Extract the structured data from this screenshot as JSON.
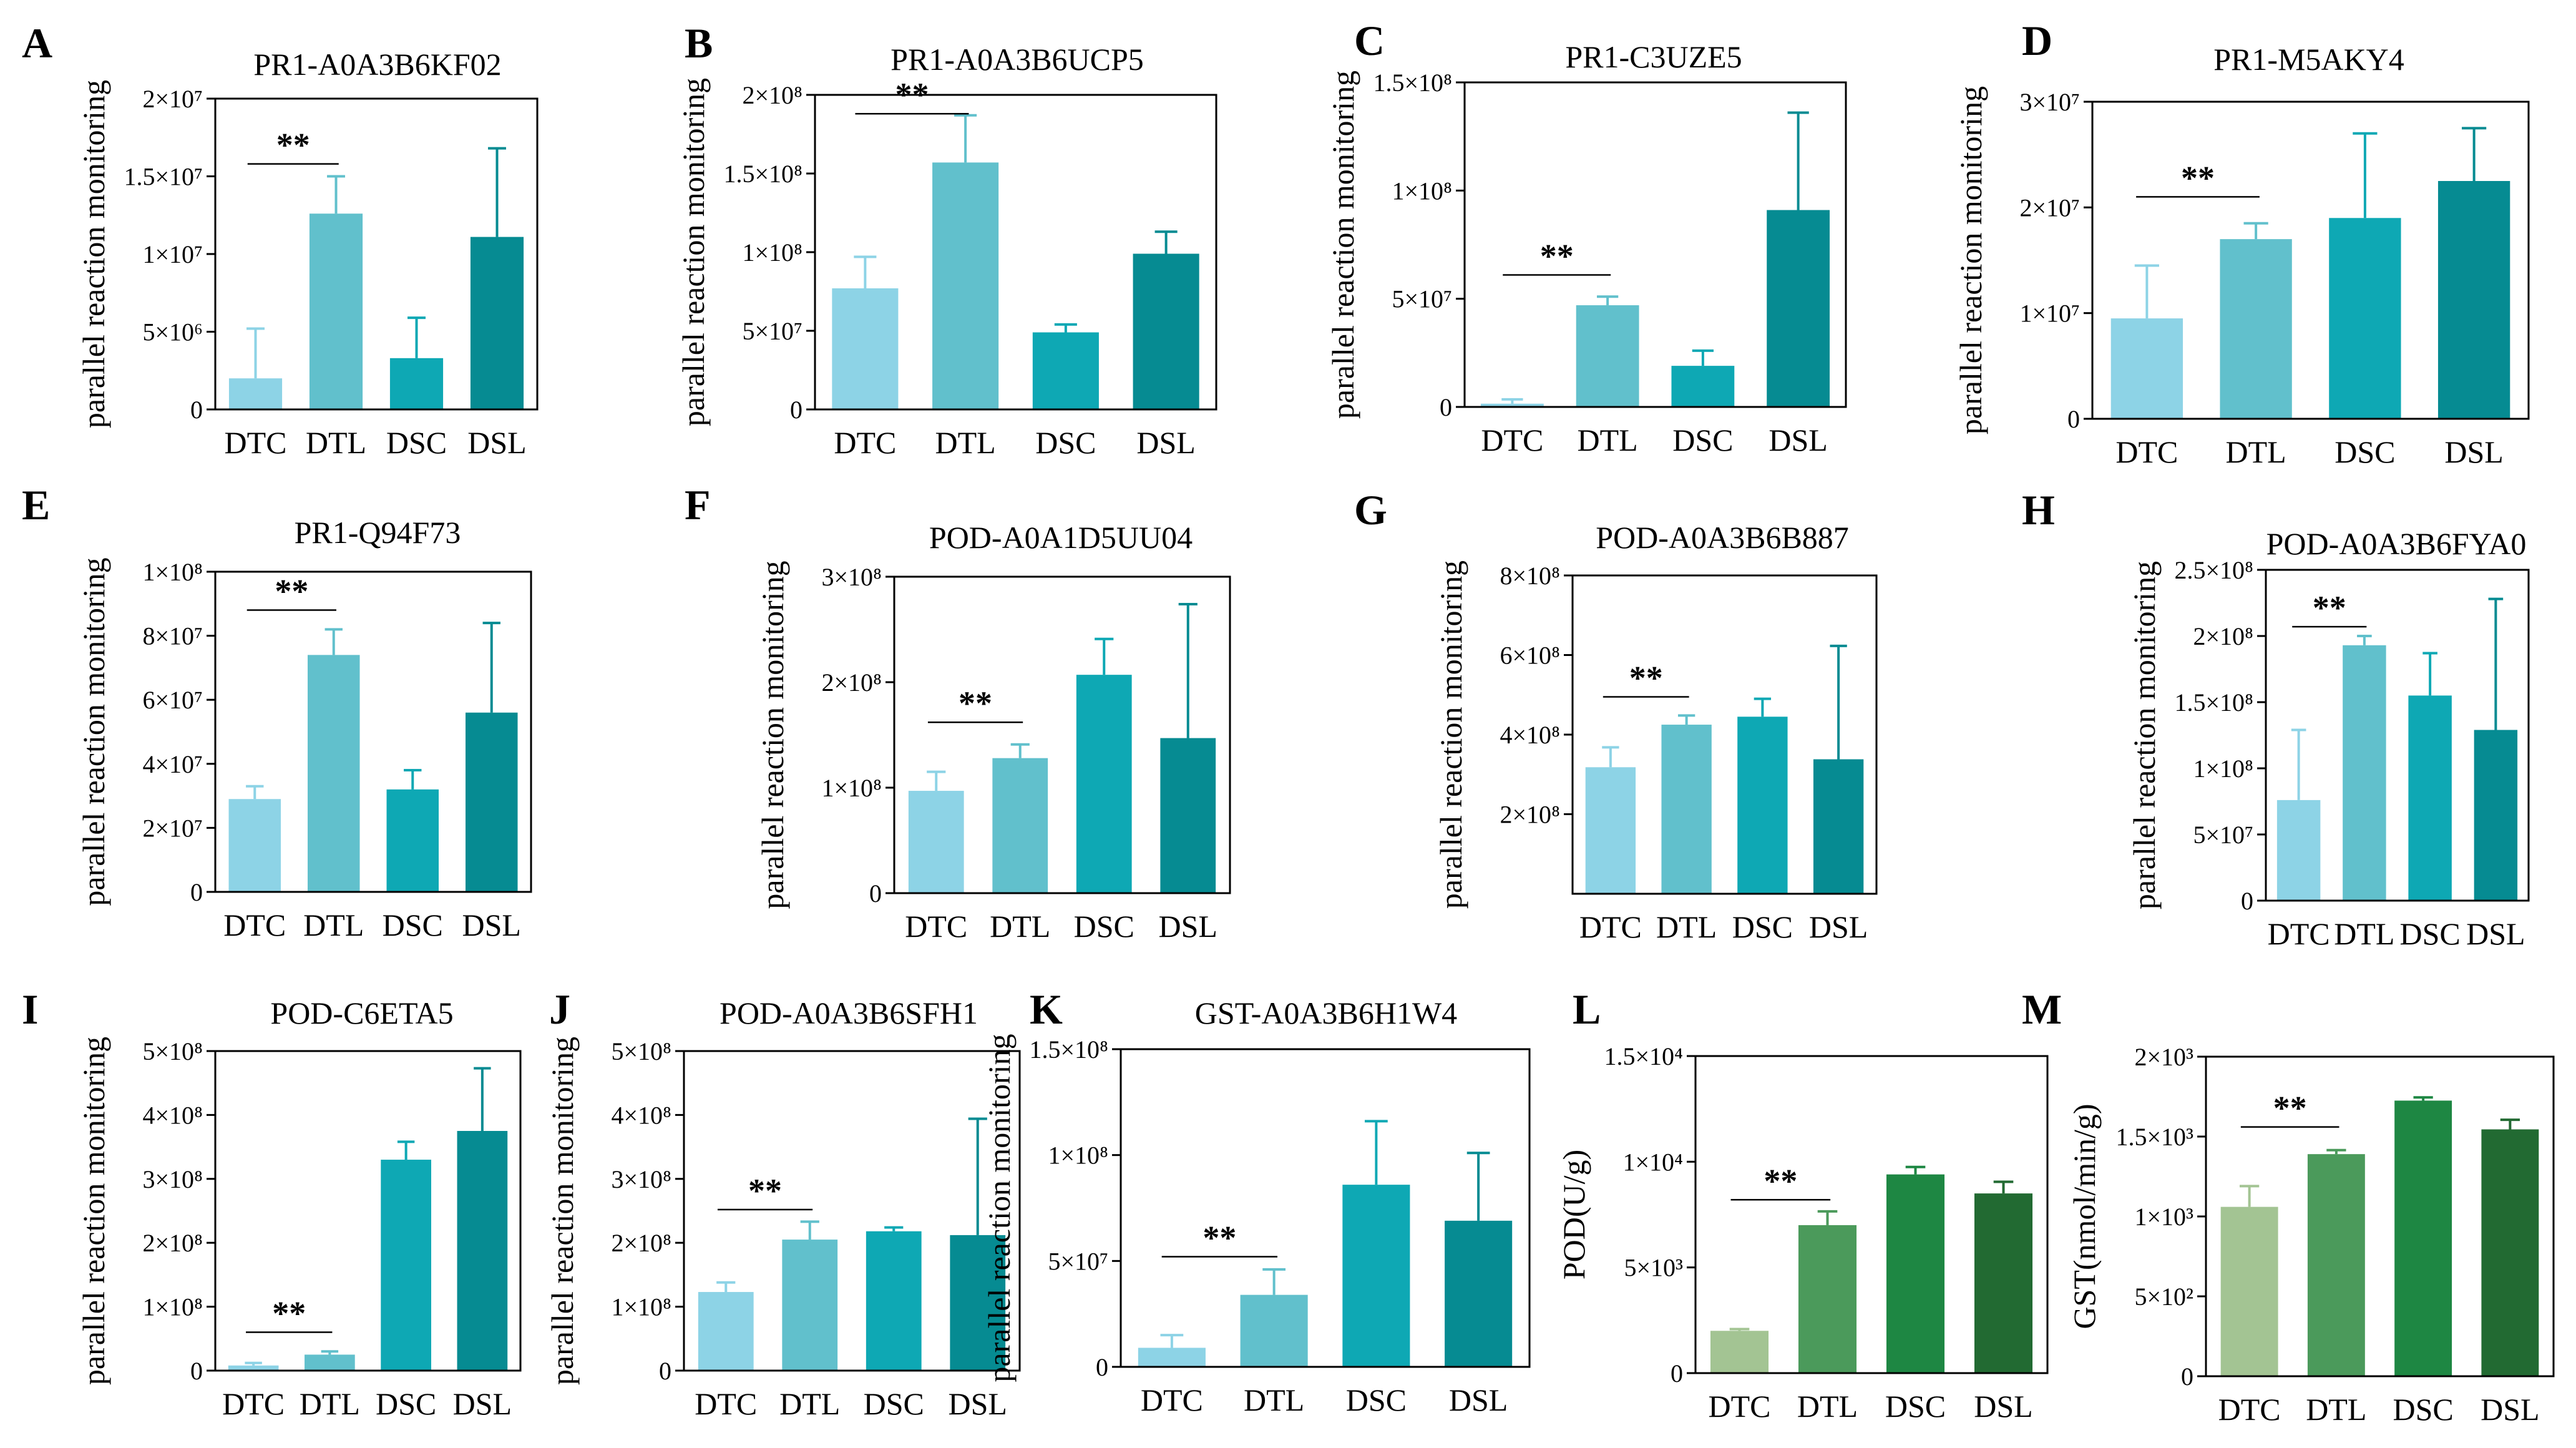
{
  "figure": {
    "background": "#ffffff"
  },
  "chart_data": [
    {
      "panel": "A",
      "type": "bar",
      "title": "PR1-A0A3B6KF02",
      "ylabel": "parallel reaction monitoring",
      "categories": [
        "DTC",
        "DTL",
        "DSC",
        "DSL"
      ],
      "values": [
        2000000,
        12600000,
        3300000,
        11100000
      ],
      "errors": [
        3200000,
        2400000,
        2600000,
        5700000
      ],
      "ylim": [
        0,
        20000000
      ],
      "yticks": [
        0,
        5000000,
        10000000,
        15000000,
        20000000
      ],
      "ytick_labels": [
        "0",
        "5×10⁶",
        "1×10⁷",
        "1.5×10⁷",
        "2×10⁷"
      ],
      "colors": [
        "#8dd3e6",
        "#61c0cc",
        "#0ea8b4",
        "#068b92"
      ],
      "significance": {
        "label": "**",
        "from": 0,
        "to": 1,
        "y": 15800000
      }
    },
    {
      "panel": "B",
      "type": "bar",
      "title": "PR1-A0A3B6UCP5",
      "ylabel": "parallel reaction monitoring",
      "categories": [
        "DTC",
        "DTL",
        "DSC",
        "DSL"
      ],
      "values": [
        77000000,
        157000000,
        49000000,
        99000000
      ],
      "errors": [
        20000000,
        30000000,
        5000000,
        14000000
      ],
      "ylim": [
        0,
        200000000
      ],
      "yticks": [
        0,
        50000000,
        100000000,
        150000000,
        200000000
      ],
      "ytick_labels": [
        "0",
        "5×10⁷",
        "1×10⁸",
        "1.5×10⁸",
        "2×10⁸"
      ],
      "colors": [
        "#8dd3e6",
        "#61c0cc",
        "#0ea8b4",
        "#068b92"
      ],
      "significance": {
        "label": "**",
        "from": 0,
        "to": 1,
        "y": 188000000
      }
    },
    {
      "panel": "C",
      "type": "bar",
      "title": "PR1-C3UZE5",
      "ylabel": "parallel reaction monitoring",
      "categories": [
        "DTC",
        "DTL",
        "DSC",
        "DSL"
      ],
      "values": [
        1500000,
        47000000,
        19000000,
        91000000
      ],
      "errors": [
        2000000,
        4000000,
        7000000,
        45000000
      ],
      "ylim": [
        0,
        150000000
      ],
      "yticks": [
        0,
        50000000,
        100000000,
        150000000
      ],
      "ytick_labels": [
        "0",
        "5×10⁷",
        "1×10⁸",
        "1.5×10⁸"
      ],
      "colors": [
        "#8dd3e6",
        "#61c0cc",
        "#0ea8b4",
        "#068b92"
      ],
      "significance": {
        "label": "**",
        "from": 0,
        "to": 1,
        "y": 61000000
      }
    },
    {
      "panel": "D",
      "type": "bar",
      "title": "PR1-M5AKY4",
      "ylabel": "parallel reaction monitoring",
      "categories": [
        "DTC",
        "DTL",
        "DSC",
        "DSL"
      ],
      "values": [
        9500000,
        17000000,
        19000000,
        22500000
      ],
      "errors": [
        5000000,
        1500000,
        8000000,
        5000000
      ],
      "ylim": [
        0,
        30000000
      ],
      "yticks": [
        0,
        10000000,
        20000000,
        30000000
      ],
      "ytick_labels": [
        "0",
        "1×10⁷",
        "2×10⁷",
        "3×10⁷"
      ],
      "colors": [
        "#8dd3e6",
        "#61c0cc",
        "#0ea8b4",
        "#068b92"
      ],
      "significance": {
        "label": "**",
        "from": 0,
        "to": 1,
        "y": 21000000
      }
    },
    {
      "panel": "E",
      "type": "bar",
      "title": "PR1-Q94F73",
      "ylabel": "parallel reaction monitoring",
      "categories": [
        "DTC",
        "DTL",
        "DSC",
        "DSL"
      ],
      "values": [
        29000000,
        74000000,
        32000000,
        56000000
      ],
      "errors": [
        4000000,
        8000000,
        6000000,
        28000000
      ],
      "ylim": [
        0,
        100000000
      ],
      "yticks": [
        0,
        20000000,
        40000000,
        60000000,
        80000000,
        100000000
      ],
      "ytick_labels": [
        "0",
        "2×10⁷",
        "4×10⁷",
        "6×10⁷",
        "8×10⁷",
        "1×10⁸"
      ],
      "colors": [
        "#8dd3e6",
        "#61c0cc",
        "#0ea8b4",
        "#068b92"
      ],
      "significance": {
        "label": "**",
        "from": 0,
        "to": 1,
        "y": 88000000
      }
    },
    {
      "panel": "F",
      "type": "bar",
      "title": "POD-A0A1D5UU04",
      "ylabel": "parallel reaction monitoring",
      "categories": [
        "DTC",
        "DTL",
        "DSC",
        "DSL"
      ],
      "values": [
        97000000,
        128000000,
        207000000,
        147000000
      ],
      "errors": [
        18000000,
        13000000,
        34000000,
        127000000
      ],
      "ylim": [
        0,
        300000000
      ],
      "yticks": [
        0,
        100000000,
        200000000,
        300000000
      ],
      "ytick_labels": [
        "0",
        "1×10⁸",
        "2×10⁸",
        "3×10⁸"
      ],
      "colors": [
        "#8dd3e6",
        "#61c0cc",
        "#0ea8b4",
        "#068b92"
      ],
      "significance": {
        "label": "**",
        "from": 0,
        "to": 1,
        "y": 162000000
      }
    },
    {
      "panel": "G",
      "type": "bar",
      "title": "POD-A0A3B6B887",
      "ylabel": "parallel reaction monitoring",
      "categories": [
        "DTC",
        "DTL",
        "DSC",
        "DSL"
      ],
      "values": [
        318000000,
        425000000,
        445000000,
        338000000
      ],
      "errors": [
        50000000,
        23000000,
        45000000,
        285000000
      ],
      "ylim": [
        0,
        800000000
      ],
      "yticks": [
        200000000,
        400000000,
        600000000,
        800000000
      ],
      "ytick_labels": [
        "2×10⁸",
        "4×10⁸",
        "6×10⁸",
        "8×10⁸"
      ],
      "colors": [
        "#8dd3e6",
        "#61c0cc",
        "#0ea8b4",
        "#068b92"
      ],
      "significance": {
        "label": "**",
        "from": 0,
        "to": 1,
        "y": 495000000
      }
    },
    {
      "panel": "H",
      "type": "bar",
      "title": "POD-A0A3B6FYA0",
      "ylabel": "parallel reaction monitoring",
      "categories": [
        "DTC",
        "DTL",
        "DSC",
        "DSL"
      ],
      "values": [
        76000000,
        193000000,
        155000000,
        129000000
      ],
      "errors": [
        53000000,
        7000000,
        32000000,
        99000000
      ],
      "ylim": [
        0,
        250000000
      ],
      "yticks": [
        0,
        50000000,
        100000000,
        150000000,
        200000000,
        250000000
      ],
      "ytick_labels": [
        "0",
        "5×10⁷",
        "1×10⁸",
        "1.5×10⁸",
        "2×10⁸",
        "2.5×10⁸"
      ],
      "colors": [
        "#8dd3e6",
        "#61c0cc",
        "#0ea8b4",
        "#068b92"
      ],
      "significance": {
        "label": "**",
        "from": 0,
        "to": 1,
        "y": 207000000
      }
    },
    {
      "panel": "I",
      "type": "bar",
      "title": "POD-C6ETA5",
      "ylabel": "parallel reaction monitoring",
      "categories": [
        "DTC",
        "DTL",
        "DSC",
        "DSL"
      ],
      "values": [
        8000000,
        25000000,
        330000000,
        375000000
      ],
      "errors": [
        4000000,
        5000000,
        28000000,
        98000000
      ],
      "ylim": [
        0,
        500000000
      ],
      "yticks": [
        0,
        100000000,
        200000000,
        300000000,
        400000000,
        500000000
      ],
      "ytick_labels": [
        "0",
        "1×10⁸",
        "2×10⁸",
        "3×10⁸",
        "4×10⁸",
        "5×10⁸"
      ],
      "colors": [
        "#8dd3e6",
        "#61c0cc",
        "#0ea8b4",
        "#068b92"
      ],
      "significance": {
        "label": "**",
        "from": 0,
        "to": 1,
        "y": 60000000
      }
    },
    {
      "panel": "J",
      "type": "bar",
      "title": "POD-A0A3B6SFH1",
      "ylabel": "parallel reaction monitoring",
      "categories": [
        "DTC",
        "DTL",
        "DSC",
        "DSL"
      ],
      "values": [
        123000000,
        205000000,
        218000000,
        212000000
      ],
      "errors": [
        15000000,
        28000000,
        6000000,
        182000000
      ],
      "ylim": [
        0,
        500000000
      ],
      "yticks": [
        0,
        100000000,
        200000000,
        300000000,
        400000000,
        500000000
      ],
      "ytick_labels": [
        "0",
        "1×10⁸",
        "2×10⁸",
        "3×10⁸",
        "4×10⁸",
        "5×10⁸"
      ],
      "colors": [
        "#8dd3e6",
        "#61c0cc",
        "#0ea8b4",
        "#068b92"
      ],
      "significance": {
        "label": "**",
        "from": 0,
        "to": 1,
        "y": 252000000
      }
    },
    {
      "panel": "K",
      "type": "bar",
      "title": "GST-A0A3B6H1W4",
      "ylabel": "parallel reaction monitoring",
      "categories": [
        "DTC",
        "DTL",
        "DSC",
        "DSL"
      ],
      "values": [
        9000000,
        34000000,
        86000000,
        69000000
      ],
      "errors": [
        6000000,
        12000000,
        30000000,
        32000000
      ],
      "ylim": [
        0,
        150000000
      ],
      "yticks": [
        0,
        50000000,
        100000000,
        150000000
      ],
      "ytick_labels": [
        "0",
        "5×10⁷",
        "1×10⁸",
        "1.5×10⁸"
      ],
      "colors": [
        "#8dd3e6",
        "#61c0cc",
        "#0ea8b4",
        "#068b92"
      ],
      "significance": {
        "label": "**",
        "from": 0,
        "to": 1,
        "y": 52000000
      }
    },
    {
      "panel": "L",
      "type": "bar",
      "title": "",
      "ylabel": "POD(U/g)",
      "categories": [
        "DTC",
        "DTL",
        "DSC",
        "DSL"
      ],
      "values": [
        2000,
        7000,
        9400,
        8500
      ],
      "errors": [
        80,
        650,
        350,
        550
      ],
      "ylim": [
        0,
        15000
      ],
      "yticks": [
        0,
        5000,
        10000,
        15000
      ],
      "ytick_labels": [
        "0",
        "5×10³",
        "1×10⁴",
        "1.5×10⁴"
      ],
      "colors": [
        "#a3c493",
        "#4b9a5b",
        "#1e8743",
        "#226a32"
      ],
      "significance": {
        "label": "**",
        "from": 0,
        "to": 1,
        "y": 8200.0
      }
    },
    {
      "panel": "M",
      "type": "bar",
      "title": "",
      "ylabel": "GST(nmol/min/g)",
      "categories": [
        "DTC",
        "DTL",
        "DSC",
        "DSL"
      ],
      "values": [
        1060,
        1390,
        1725,
        1545
      ],
      "errors": [
        130,
        25,
        20,
        60
      ],
      "ylim": [
        0,
        2000
      ],
      "yticks": [
        0,
        500,
        1000,
        1500,
        2000
      ],
      "ytick_labels": [
        "0",
        "5×10²",
        "1×10³",
        "1.5×10³",
        "2×10³"
      ],
      "colors": [
        "#a3c493",
        "#4b9a5b",
        "#1e8743",
        "#226a32"
      ],
      "significance": {
        "label": "**",
        "from": 0,
        "to": 1,
        "y": 1560
      }
    }
  ]
}
